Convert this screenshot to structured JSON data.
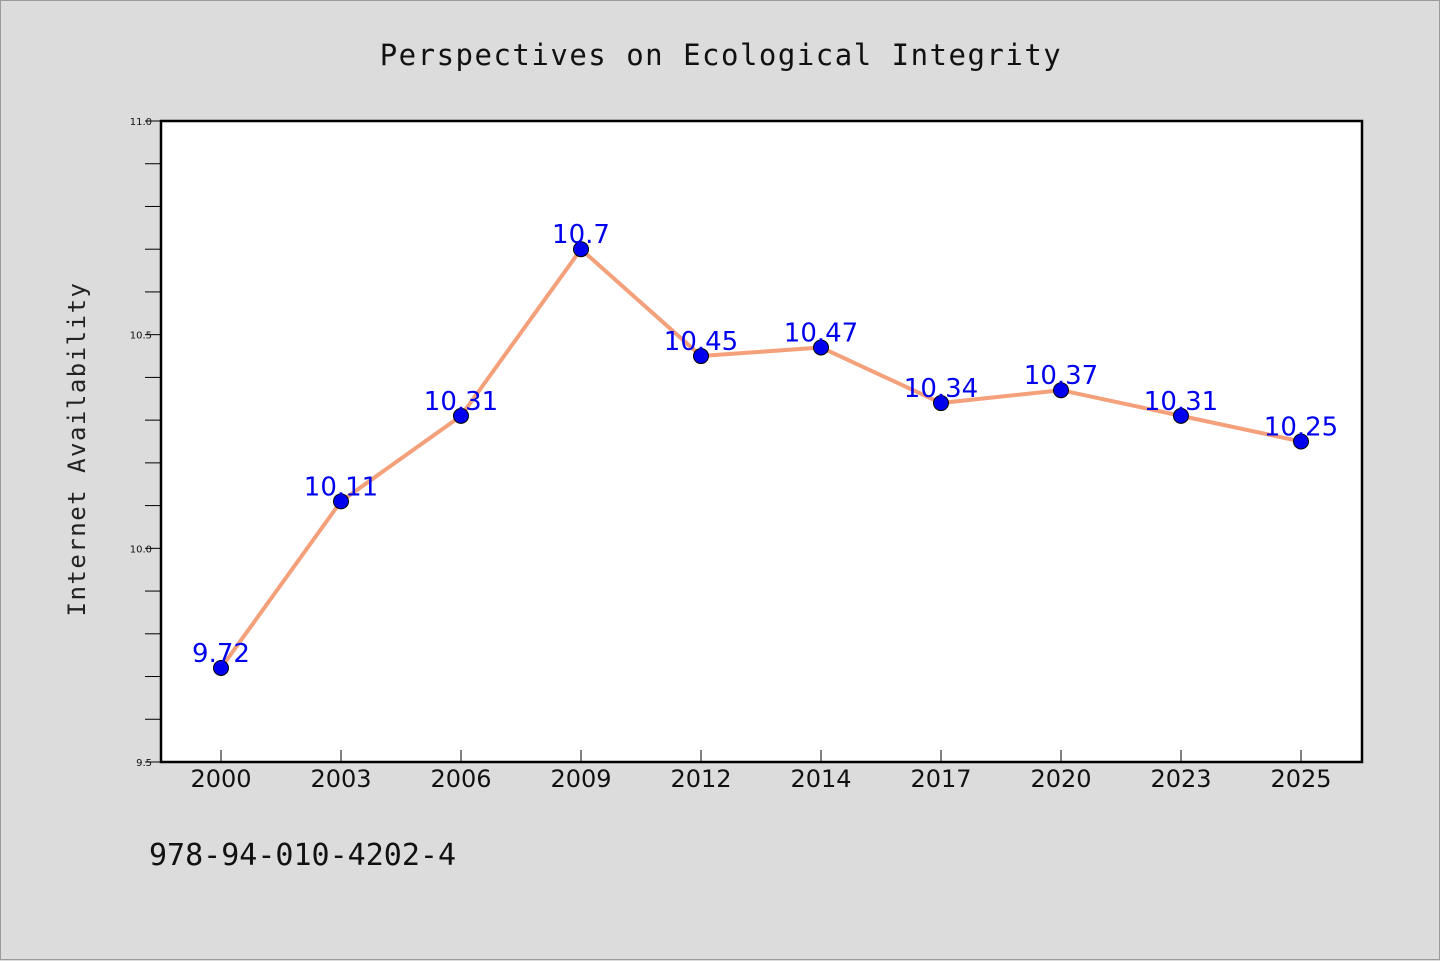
{
  "chart_data": {
    "type": "line",
    "title": "Perspectives on Ecological Integrity",
    "xlabel": "",
    "ylabel": "Internet Availability",
    "categories": [
      "2000",
      "2003",
      "2006",
      "2009",
      "2012",
      "2014",
      "2017",
      "2020",
      "2023",
      "2025"
    ],
    "series": [
      {
        "values": [
          9.72,
          10.11,
          10.31,
          10.7,
          10.45,
          10.47,
          10.34,
          10.37,
          10.31,
          10.25
        ],
        "data_labels": [
          "9.72",
          "10.11",
          "10.31",
          "10.7",
          "10.45",
          "10.47",
          "10.34",
          "10.37",
          "10.31",
          "10.25"
        ],
        "line_color": "#f4a07a",
        "marker_color": "#0000ee",
        "label_color": "#0000ee"
      }
    ],
    "ylim": [
      9.5,
      11.0
    ],
    "yticks": [
      "9.5",
      "10.0",
      "10.5",
      "11.0"
    ],
    "y_minor_tick_step": 0.1,
    "grid": false,
    "legend": "none"
  },
  "footer": {
    "isbn": "978-94-010-4202-4"
  },
  "colors": {
    "background": "#dcdcdc",
    "plot_background": "#ffffff"
  }
}
